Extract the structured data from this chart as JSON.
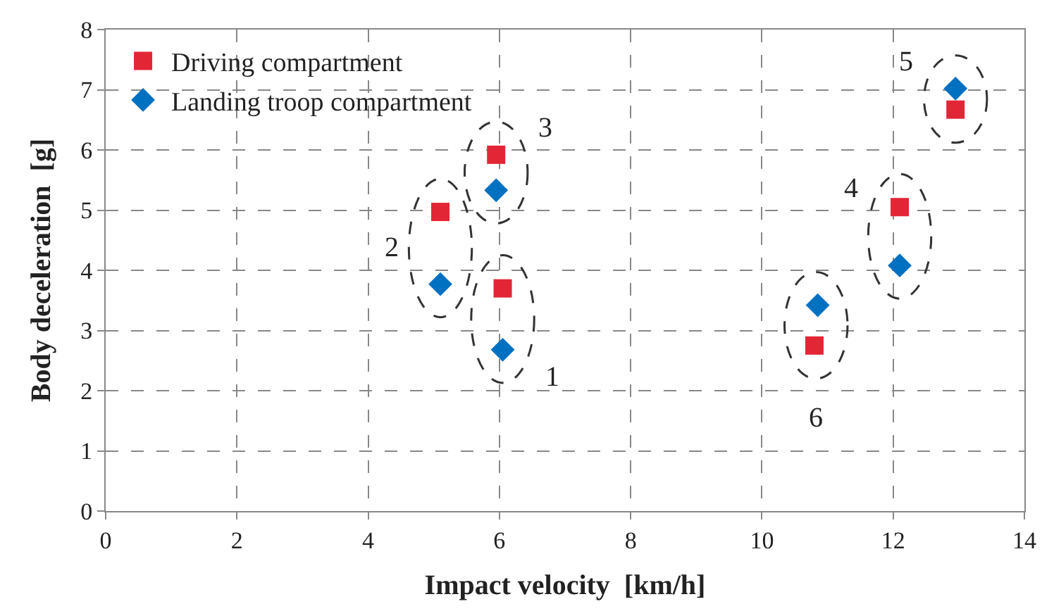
{
  "chart_data": {
    "type": "scatter",
    "xlabel": "Impact velocity  [km/h]",
    "ylabel": "Body deceleration  [g]",
    "xlim": [
      0,
      14
    ],
    "ylim": [
      0,
      8
    ],
    "xticks": [
      0,
      2,
      4,
      6,
      8,
      10,
      12,
      14
    ],
    "yticks": [
      0,
      1,
      2,
      3,
      4,
      5,
      6,
      7,
      8
    ],
    "grid": true,
    "legend": "top left",
    "series": [
      {
        "name": "Driving compartment",
        "color": "#e32636",
        "marker": "square",
        "x": [
          6.05,
          5.1,
          5.95,
          12.1,
          12.95,
          10.8
        ],
        "values": [
          3.7,
          4.97,
          5.92,
          5.05,
          6.67,
          2.75
        ]
      },
      {
        "name": "Landing troop compartment",
        "color": "#0070c0",
        "marker": "diamond",
        "x": [
          6.05,
          5.1,
          5.95,
          12.1,
          12.95,
          10.85
        ],
        "values": [
          2.68,
          3.77,
          5.33,
          4.08,
          7.02,
          3.42
        ]
      }
    ],
    "annotations": [
      "1",
      "2",
      "3",
      "4",
      "5",
      "6"
    ]
  }
}
